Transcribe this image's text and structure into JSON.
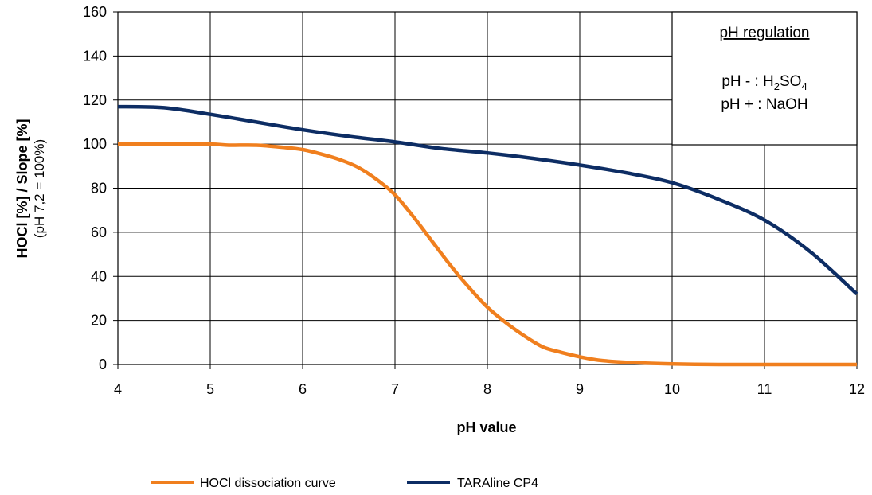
{
  "chart_data": {
    "type": "line",
    "xlabel": "pH value",
    "ylabel": "HOCl [%] / Slope [%]",
    "ylabel_sub": "(pH 7,2 = 100%)",
    "xlim": [
      4,
      12
    ],
    "ylim": [
      0,
      160
    ],
    "x_ticks": [
      4,
      5,
      6,
      7,
      8,
      9,
      10,
      11,
      12
    ],
    "y_ticks": [
      0,
      20,
      40,
      60,
      80,
      100,
      120,
      140,
      160
    ],
    "grid": true,
    "legend_position": "bottom",
    "series": [
      {
        "name": "HOCl dissociation curve",
        "color": "#F07F1E",
        "x": [
          4,
          4.5,
          5,
          5.2,
          5.5,
          5.8,
          6,
          6.2,
          6.4,
          6.6,
          6.8,
          7,
          7.2,
          7.4,
          7.6,
          7.8,
          8,
          8.2,
          8.4,
          8.6,
          8.8,
          9,
          9.2,
          9.5,
          10,
          10.5,
          11,
          11.5,
          12
        ],
        "y": [
          100,
          100,
          100,
          99.5,
          99.5,
          98.5,
          97.5,
          95.5,
          93,
          89.5,
          84,
          77,
          67,
          56,
          45,
          35,
          26,
          19,
          13,
          8,
          5.5,
          3.5,
          2,
          1,
          0.3,
          0,
          0,
          0,
          0
        ]
      },
      {
        "name": "TARAline CP4",
        "color": "#0D2D64",
        "x": [
          4,
          4.5,
          5,
          5.5,
          6,
          6.5,
          7,
          7.5,
          8,
          8.5,
          9,
          9.5,
          10,
          10.5,
          11,
          11.5,
          12
        ],
        "y": [
          117,
          116.5,
          113.5,
          110,
          106.5,
          103.5,
          101,
          98,
          96,
          93.5,
          90.5,
          87,
          82.5,
          75,
          65.5,
          51,
          32
        ]
      }
    ],
    "annotation": {
      "title": "pH regulation",
      "line1_prefix": "pH  - : H",
      "line1_sub1": "2",
      "line1_mid": "SO",
      "line1_sub2": "4",
      "line2": "pH + : NaOH"
    }
  }
}
